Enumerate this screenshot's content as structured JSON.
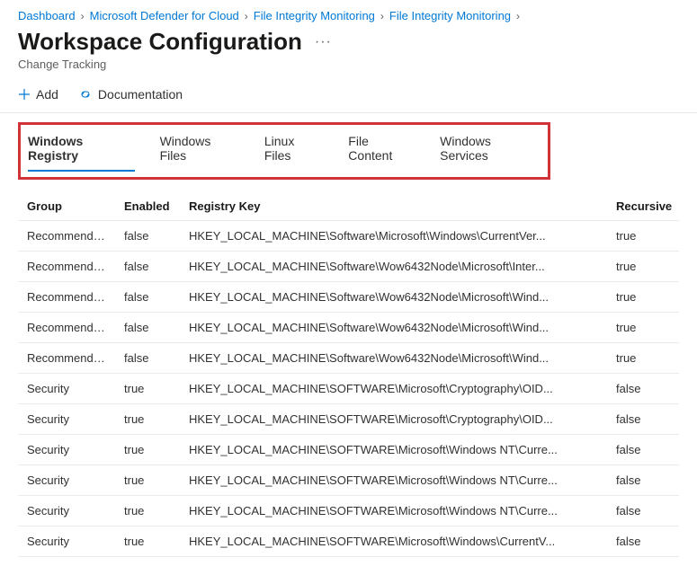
{
  "breadcrumb": {
    "items": [
      {
        "label": "Dashboard"
      },
      {
        "label": "Microsoft Defender for Cloud"
      },
      {
        "label": "File Integrity Monitoring"
      },
      {
        "label": "File Integrity Monitoring"
      }
    ]
  },
  "header": {
    "title": "Workspace Configuration",
    "subtitle": "Change Tracking"
  },
  "toolbar": {
    "add_label": "Add",
    "doc_label": "Documentation"
  },
  "tabs": [
    {
      "label": "Windows Registry",
      "active": true
    },
    {
      "label": "Windows Files",
      "active": false
    },
    {
      "label": "Linux Files",
      "active": false
    },
    {
      "label": "File Content",
      "active": false
    },
    {
      "label": "Windows Services",
      "active": false
    }
  ],
  "table": {
    "columns": {
      "group": "Group",
      "enabled": "Enabled",
      "registry_key": "Registry Key",
      "recursive": "Recursive"
    },
    "rows": [
      {
        "group": "Recommended",
        "enabled": "false",
        "key": "HKEY_LOCAL_MACHINE\\Software\\Microsoft\\Windows\\CurrentVer...",
        "recursive": "true"
      },
      {
        "group": "Recommended",
        "enabled": "false",
        "key": "HKEY_LOCAL_MACHINE\\Software\\Wow6432Node\\Microsoft\\Inter...",
        "recursive": "true"
      },
      {
        "group": "Recommended",
        "enabled": "false",
        "key": "HKEY_LOCAL_MACHINE\\Software\\Wow6432Node\\Microsoft\\Wind...",
        "recursive": "true"
      },
      {
        "group": "Recommended",
        "enabled": "false",
        "key": "HKEY_LOCAL_MACHINE\\Software\\Wow6432Node\\Microsoft\\Wind...",
        "recursive": "true"
      },
      {
        "group": "Recommended",
        "enabled": "false",
        "key": "HKEY_LOCAL_MACHINE\\Software\\Wow6432Node\\Microsoft\\Wind...",
        "recursive": "true"
      },
      {
        "group": "Security",
        "enabled": "true",
        "key": "HKEY_LOCAL_MACHINE\\SOFTWARE\\Microsoft\\Cryptography\\OID...",
        "recursive": "false"
      },
      {
        "group": "Security",
        "enabled": "true",
        "key": "HKEY_LOCAL_MACHINE\\SOFTWARE\\Microsoft\\Cryptography\\OID...",
        "recursive": "false"
      },
      {
        "group": "Security",
        "enabled": "true",
        "key": "HKEY_LOCAL_MACHINE\\SOFTWARE\\Microsoft\\Windows NT\\Curre...",
        "recursive": "false"
      },
      {
        "group": "Security",
        "enabled": "true",
        "key": "HKEY_LOCAL_MACHINE\\SOFTWARE\\Microsoft\\Windows NT\\Curre...",
        "recursive": "false"
      },
      {
        "group": "Security",
        "enabled": "true",
        "key": "HKEY_LOCAL_MACHINE\\SOFTWARE\\Microsoft\\Windows NT\\Curre...",
        "recursive": "false"
      },
      {
        "group": "Security",
        "enabled": "true",
        "key": "HKEY_LOCAL_MACHINE\\SOFTWARE\\Microsoft\\Windows\\CurrentV...",
        "recursive": "false"
      }
    ]
  },
  "highlight_color": "#d13438",
  "link_color": "#0078d4"
}
